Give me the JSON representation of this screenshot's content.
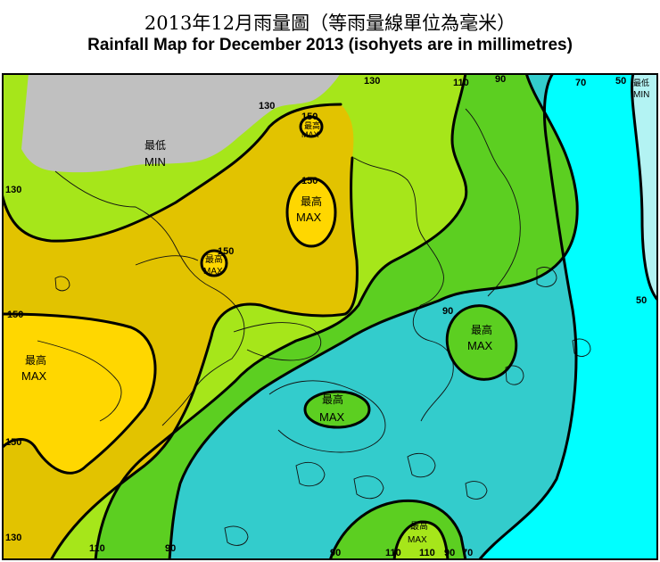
{
  "title_zh": "2013年12月雨量圖（等雨量線單位為毫米）",
  "title_en": "Rainfall Map for December 2013 (isohyets are in millimetres)",
  "colors": {
    "band_over_150": "#ffd700",
    "band_130_150": "#e2c300",
    "band_110_130": "#a6e61a",
    "band_90_110": "#5ccf21",
    "band_70_90": "#33cccc",
    "band_50_70": "#00ffff",
    "band_under_50": "#b3f3f3",
    "no_data": "#c0c0c0"
  },
  "isohyet_labels": [
    "130",
    "130",
    "130",
    "110",
    "90",
    "70",
    "50",
    "150",
    "150",
    "150",
    "150",
    "150",
    "90",
    "50",
    "130",
    "110",
    "90",
    "90",
    "110",
    "110",
    "90",
    "70"
  ],
  "markers": {
    "max_zh": "最高",
    "max_en": "MAX",
    "min_zh": "最低",
    "min_en": "MIN"
  }
}
